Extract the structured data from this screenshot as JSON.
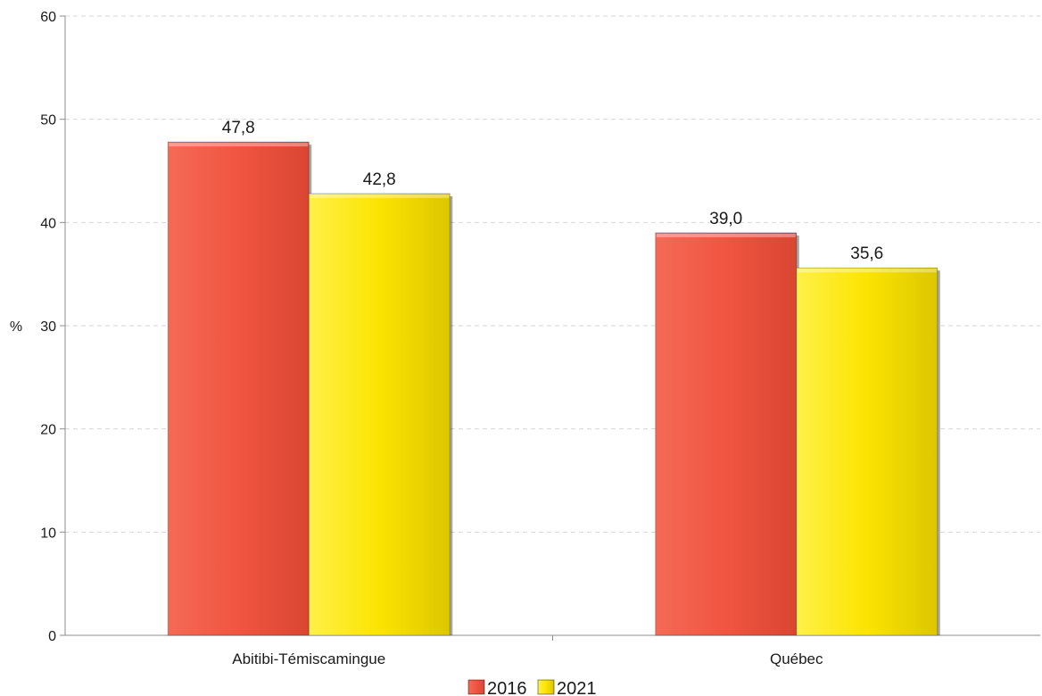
{
  "chart_data": {
    "type": "bar",
    "title": "",
    "xlabel": "",
    "ylabel": "%",
    "ylim": [
      0,
      60
    ],
    "yticks": [
      0,
      10,
      20,
      30,
      40,
      50,
      60
    ],
    "grid": true,
    "legend_position": "bottom",
    "categories": [
      "Abitibi-Témiscamingue",
      "Québec"
    ],
    "series": [
      {
        "name": "2016",
        "values": [
          47.8,
          39.0
        ],
        "labels": [
          "47,8",
          "39,0"
        ],
        "color": "#f05540"
      },
      {
        "name": "2021",
        "values": [
          42.8,
          35.6
        ],
        "labels": [
          "42,8",
          "35,6"
        ],
        "color": "#fbe400"
      }
    ]
  }
}
